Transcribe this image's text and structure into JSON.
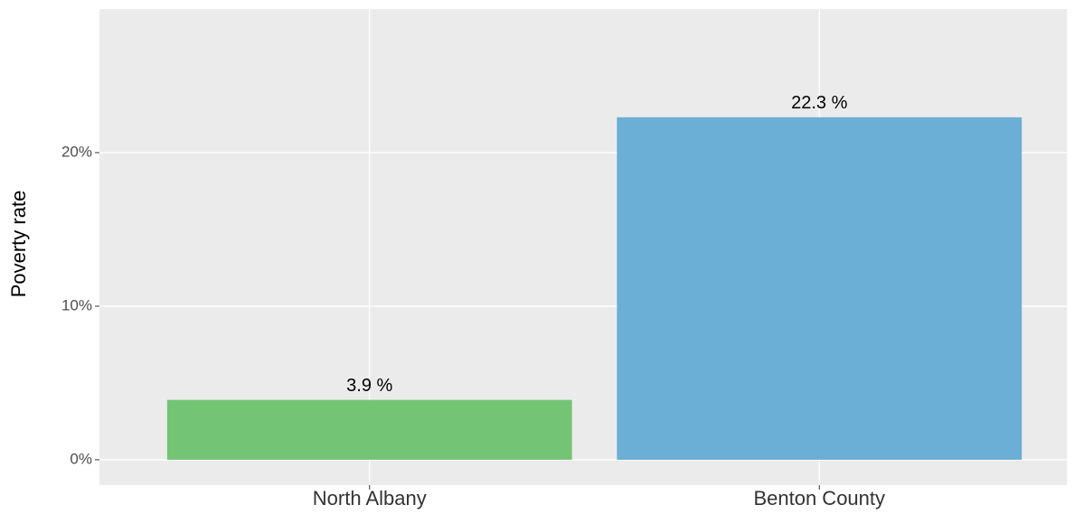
{
  "chart_data": {
    "type": "bar",
    "y_label": "Poverty rate",
    "categories": [
      "North Albany",
      "Benton County"
    ],
    "values": [
      3.9,
      22.3
    ],
    "value_labels": [
      "3.9 %",
      "22.3 %"
    ],
    "colors": [
      "#74c476",
      "#6baed6"
    ],
    "ylim": [
      -1.65,
      29.35
    ],
    "yticks": [
      {
        "value": 0,
        "label": "0%"
      },
      {
        "value": 10,
        "label": "10%"
      },
      {
        "value": 20,
        "label": "20%"
      }
    ],
    "grid": true
  }
}
